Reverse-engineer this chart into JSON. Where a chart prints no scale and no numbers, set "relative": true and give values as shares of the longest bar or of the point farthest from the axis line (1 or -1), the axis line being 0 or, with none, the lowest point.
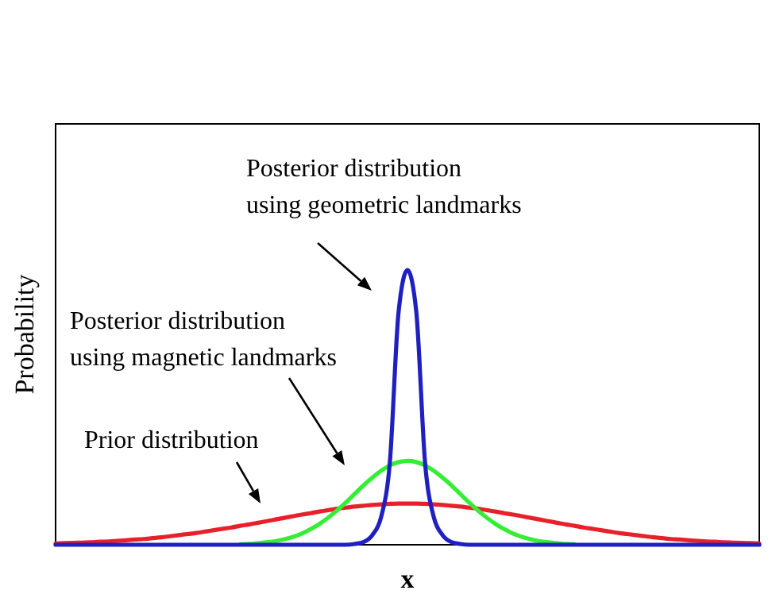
{
  "chart_data": {
    "type": "line",
    "relative": true,
    "xlabel": "x",
    "ylabel": "Probability",
    "categories": [
      null,
      null,
      null,
      null,
      null,
      null,
      null,
      null,
      null,
      null,
      null,
      null,
      null,
      null,
      null,
      null,
      null,
      null,
      null,
      null,
      null,
      null,
      null,
      null,
      null,
      null,
      null,
      null,
      null,
      null,
      null,
      null,
      null,
      null,
      null,
      null,
      null,
      null,
      null,
      null,
      null,
      null,
      null,
      null,
      null,
      null,
      null,
      null,
      null,
      null,
      null,
      null,
      null,
      null,
      null,
      null,
      null,
      null,
      null,
      null,
      null,
      null,
      null,
      null,
      null,
      null,
      null,
      null,
      null,
      null,
      null,
      null,
      null,
      null,
      null,
      null,
      null,
      null,
      null,
      null,
      null
    ],
    "series": [
      {
        "color": "#e8202a",
        "values": [
          0.005,
          0.006,
          0.007,
          0.008,
          0.009,
          0.011,
          0.012,
          0.014,
          0.016,
          0.019,
          0.021,
          0.024,
          0.027,
          0.031,
          0.035,
          0.039,
          0.043,
          0.048,
          0.053,
          0.058,
          0.063,
          0.069,
          0.074,
          0.08,
          0.086,
          0.092,
          0.098,
          0.104,
          0.11,
          0.115,
          0.121,
          0.126,
          0.131,
          0.135,
          0.139,
          0.142,
          0.145,
          0.147,
          0.149,
          0.15,
          0.15,
          0.15,
          0.149,
          0.147,
          0.145,
          0.142,
          0.139,
          0.135,
          0.131,
          0.126,
          0.121,
          0.115,
          0.11,
          0.104,
          0.098,
          0.092,
          0.086,
          0.08,
          0.074,
          0.069,
          0.063,
          0.058,
          0.053,
          0.048,
          0.043,
          0.039,
          0.035,
          0.031,
          0.027,
          0.024,
          0.021,
          0.019,
          0.016,
          0.014,
          0.012,
          0.011,
          0.009,
          0.008,
          0.007,
          0.006,
          0.005
        ]
      },
      {
        "color": "#33ee33",
        "values": [
          null,
          null,
          null,
          null,
          null,
          null,
          null,
          null,
          null,
          null,
          null,
          null,
          null,
          null,
          null,
          null,
          null,
          null,
          null,
          null,
          null,
          0.002,
          0.003,
          0.006,
          0.009,
          0.013,
          0.02,
          0.029,
          0.041,
          0.057,
          0.076,
          0.099,
          0.125,
          0.154,
          0.185,
          0.216,
          0.244,
          0.269,
          0.289,
          0.301,
          0.305,
          0.301,
          0.289,
          0.269,
          0.244,
          0.216,
          0.185,
          0.154,
          0.125,
          0.099,
          0.076,
          0.057,
          0.041,
          0.029,
          0.02,
          0.013,
          0.009,
          0.006,
          0.003,
          0.002,
          null,
          null,
          null,
          null,
          null,
          null,
          null,
          null,
          null,
          null,
          null,
          null,
          null,
          null,
          null,
          null,
          null,
          null,
          null,
          null,
          null
        ]
      },
      {
        "color": "#2020c0",
        "values": [
          0,
          0,
          0,
          0,
          0,
          0,
          0,
          0,
          0,
          0,
          0,
          0,
          0,
          0,
          0,
          0,
          0,
          0,
          0,
          0,
          0,
          0,
          0,
          0,
          0,
          0,
          0,
          0,
          0,
          0,
          0,
          0,
          0,
          0,
          0.003,
          0.01,
          0.035,
          0.1,
          0.3,
          0.85,
          1,
          0.85,
          0.3,
          0.1,
          0.035,
          0.01,
          0.003,
          0,
          0,
          0,
          0,
          0,
          0,
          0,
          0,
          0,
          0,
          0,
          0,
          0,
          0,
          0,
          0,
          0,
          0,
          0,
          0,
          0,
          0,
          0,
          0,
          0,
          0,
          0,
          0,
          0,
          0,
          0,
          0,
          0,
          0
        ]
      }
    ],
    "annotations": [
      "Posterior distribution\nusing geometric landmarks",
      "Posterior distribution\nusing magnetic landmarks",
      "Prior distribution"
    ]
  }
}
